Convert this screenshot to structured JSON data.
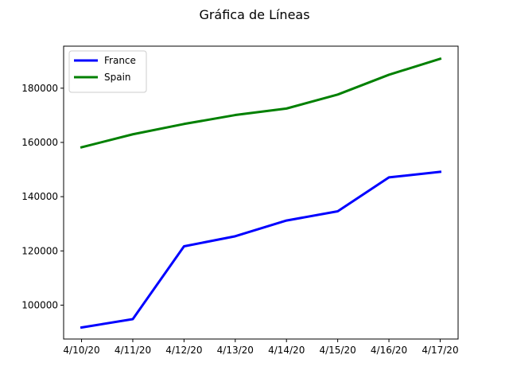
{
  "chart_data": {
    "type": "line",
    "title": "Gráfica de Líneas",
    "xlabel": "",
    "ylabel": "",
    "categories": [
      "4/10/20",
      "4/11/20",
      "4/12/20",
      "4/13/20",
      "4/14/20",
      "4/15/20",
      "4/16/20",
      "4/17/20"
    ],
    "yticks": [
      100000,
      120000,
      140000,
      160000,
      180000
    ],
    "ylim": [
      87500,
      195500
    ],
    "grid": false,
    "legend_position": "upper left",
    "series": [
      {
        "name": "France",
        "color": "#0000ff",
        "values": [
          91750,
          94850,
          121700,
          125400,
          131200,
          134600,
          147100,
          149150
        ]
      },
      {
        "name": "Spain",
        "color": "#008000",
        "values": [
          158200,
          163000,
          166800,
          170100,
          172500,
          177650,
          184950,
          190850
        ]
      }
    ]
  }
}
